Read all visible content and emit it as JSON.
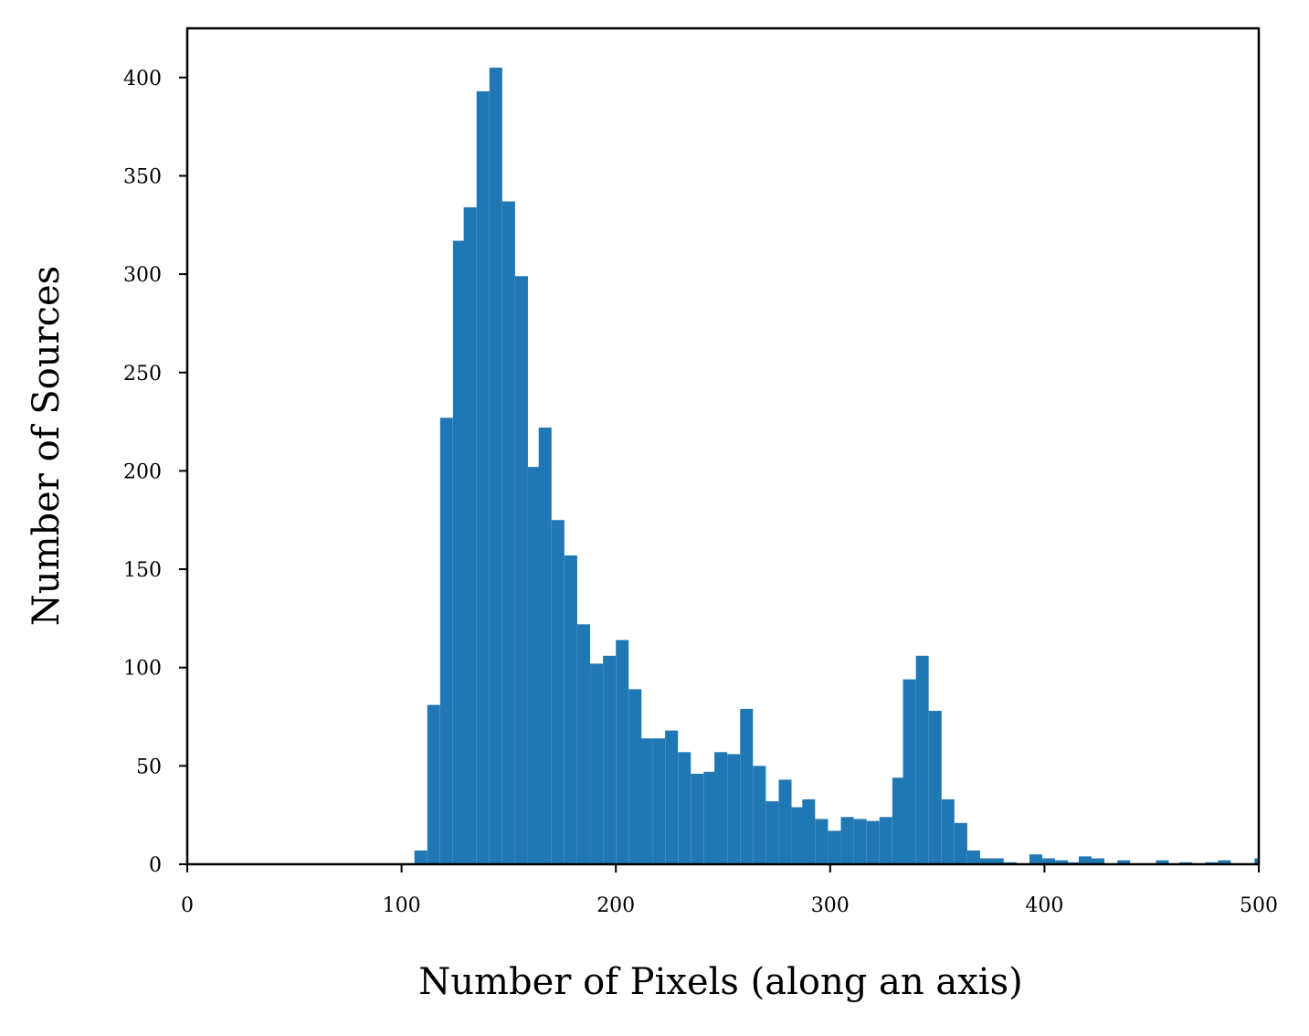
{
  "chart_data": {
    "type": "bar",
    "title": "",
    "xlabel": "Number of Pixels (along an axis)",
    "ylabel": "Number of Sources",
    "xlim": [
      0,
      500
    ],
    "ylim": [
      0,
      425
    ],
    "xticks": [
      0,
      100,
      200,
      300,
      400,
      500
    ],
    "yticks": [
      0,
      50,
      100,
      150,
      200,
      250,
      300,
      350,
      400
    ],
    "grid": false,
    "legend": "none",
    "bar_color": "#1f77b4",
    "bin_width": 5.8,
    "bins_start": [
      106,
      112,
      118,
      124,
      129,
      135,
      141,
      147,
      153,
      159,
      164,
      170,
      176,
      182,
      188,
      194,
      200,
      206,
      211,
      217,
      223,
      229,
      235,
      241,
      246,
      252,
      258,
      264,
      270,
      276,
      282,
      287,
      293,
      299,
      305,
      311,
      317,
      323,
      329,
      334,
      340,
      346,
      352,
      358,
      364,
      370,
      375,
      381,
      387,
      393,
      399,
      405,
      410,
      416,
      422,
      428,
      434,
      440,
      446,
      452,
      457,
      463,
      469,
      475,
      481,
      487,
      493,
      498
    ],
    "counts": [
      7,
      81,
      227,
      317,
      334,
      393,
      405,
      337,
      299,
      202,
      222,
      175,
      157,
      122,
      102,
      106,
      114,
      89,
      64,
      64,
      68,
      57,
      46,
      47,
      57,
      56,
      79,
      50,
      32,
      43,
      29,
      33,
      23,
      17,
      24,
      23,
      22,
      24,
      44,
      94,
      106,
      78,
      33,
      21,
      7,
      3,
      3,
      1,
      0,
      5,
      3,
      2,
      1,
      4,
      3,
      0,
      2,
      0,
      0,
      2,
      0,
      1,
      0,
      1,
      2,
      0,
      0,
      3
    ]
  }
}
